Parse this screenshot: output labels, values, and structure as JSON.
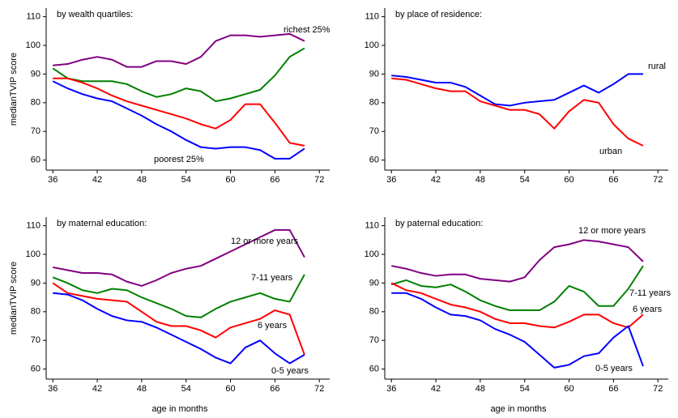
{
  "chart_data": [
    {
      "type": "line",
      "title": "by wealth quartiles:",
      "ylabel": "medianTVIP score",
      "x": [
        36,
        38,
        40,
        42,
        44,
        46,
        48,
        50,
        52,
        54,
        56,
        58,
        60,
        62,
        64,
        66,
        68,
        70
      ],
      "xlim": [
        35.1,
        73.4
      ],
      "ylim": [
        56.5,
        113
      ],
      "xticks": [
        36,
        42,
        48,
        54,
        60,
        66,
        72
      ],
      "yticks": [
        60,
        70,
        80,
        90,
        100,
        110
      ],
      "series": [
        {
          "name": "richest 25%",
          "color": "#800080",
          "values": [
            93,
            93.5,
            95,
            96,
            95,
            92.5,
            92.5,
            94.5,
            94.5,
            93.5,
            96,
            101.5,
            103.5,
            103.5,
            103,
            103.5,
            104,
            101.5
          ]
        },
        {
          "color": "#008000",
          "values": [
            92,
            88.5,
            87.5,
            87.5,
            87.5,
            86.5,
            84,
            82,
            83,
            85,
            84,
            80.5,
            81.5,
            83,
            84.5,
            89.5,
            96,
            99
          ]
        },
        {
          "color": "#ff0000",
          "values": [
            88.5,
            88.5,
            87,
            85,
            82.5,
            80.5,
            79,
            77.5,
            76,
            74.5,
            72.5,
            71,
            74,
            79.5,
            79.5,
            73,
            66,
            65
          ]
        },
        {
          "name": "poorest 25%",
          "color": "#0000ff",
          "values": [
            87.5,
            85,
            83,
            81.5,
            80.5,
            78,
            75.5,
            72.5,
            70,
            67,
            64.5,
            64,
            64.5,
            64.5,
            63.5,
            60.5,
            60.5,
            64
          ]
        }
      ]
    },
    {
      "type": "line",
      "title": "by place of residence:",
      "x": [
        36,
        38,
        40,
        42,
        44,
        46,
        48,
        50,
        52,
        54,
        56,
        58,
        60,
        62,
        64,
        66,
        68,
        70
      ],
      "xlim": [
        35.1,
        73.4
      ],
      "ylim": [
        56.5,
        113
      ],
      "xticks": [
        36,
        42,
        48,
        54,
        60,
        66,
        72
      ],
      "yticks": [
        60,
        70,
        80,
        90,
        100,
        110
      ],
      "series": [
        {
          "name": "rural",
          "color": "#0000ff",
          "values": [
            89.5,
            89,
            88,
            87,
            87,
            85.5,
            82.5,
            79.5,
            79,
            80,
            80.5,
            81,
            83.5,
            86,
            83.5,
            86.5,
            90,
            90
          ]
        },
        {
          "name": "urban",
          "color": "#ff0000",
          "values": [
            88.5,
            88,
            86.5,
            85,
            84,
            84,
            80.5,
            79,
            77.5,
            77.5,
            76,
            71,
            77,
            81,
            80,
            72.5,
            67.5,
            65
          ]
        }
      ]
    },
    {
      "type": "line",
      "title": "by maternal education:",
      "ylabel": "medianTVIP score",
      "xlabel": "age in months",
      "x": [
        36,
        38,
        40,
        42,
        44,
        46,
        48,
        50,
        52,
        54,
        56,
        58,
        60,
        62,
        64,
        66,
        68,
        70
      ],
      "xlim": [
        35.1,
        73.4
      ],
      "ylim": [
        56.5,
        113
      ],
      "xticks": [
        36,
        42,
        48,
        54,
        60,
        66,
        72
      ],
      "yticks": [
        60,
        70,
        80,
        90,
        100,
        110
      ],
      "series": [
        {
          "name": "12 or more years",
          "color": "#800080",
          "values": [
            95.5,
            94.5,
            93.5,
            93.5,
            93,
            90.5,
            89,
            91,
            93.5,
            95,
            96,
            98.5,
            101,
            103.5,
            106,
            108.5,
            108.5,
            99
          ]
        },
        {
          "name": "7-11 years",
          "color": "#008000",
          "values": [
            92,
            90,
            87.5,
            86.5,
            88,
            87.5,
            85,
            83,
            81,
            78.5,
            78,
            81,
            83.5,
            85,
            86.5,
            84.5,
            83.5,
            93
          ]
        },
        {
          "name": "6 years",
          "color": "#ff0000",
          "values": [
            90,
            86.5,
            85.5,
            84.5,
            84,
            83.5,
            80,
            76.5,
            75,
            75,
            73.5,
            71,
            74.5,
            76,
            77.5,
            80.5,
            79,
            65
          ]
        },
        {
          "name": "0-5 years",
          "color": "#0000ff",
          "values": [
            86.5,
            86,
            84,
            81,
            78.5,
            77,
            76.5,
            74.5,
            72,
            69.5,
            67,
            64,
            62,
            67.5,
            70,
            65.5,
            62,
            65
          ]
        }
      ]
    },
    {
      "type": "line",
      "title": "by paternal education:",
      "xlabel": "age in months",
      "x": [
        36,
        38,
        40,
        42,
        44,
        46,
        48,
        50,
        52,
        54,
        56,
        58,
        60,
        62,
        64,
        66,
        68,
        70
      ],
      "xlim": [
        35.1,
        73.4
      ],
      "ylim": [
        56.5,
        113
      ],
      "xticks": [
        36,
        42,
        48,
        54,
        60,
        66,
        72
      ],
      "yticks": [
        60,
        70,
        80,
        90,
        100,
        110
      ],
      "series": [
        {
          "name": "12 or more years",
          "color": "#800080",
          "values": [
            96,
            95,
            93.5,
            92.5,
            93,
            93,
            91.5,
            91,
            90.5,
            92,
            98,
            102.5,
            103.5,
            105,
            104.5,
            103.5,
            102.5,
            97.5
          ]
        },
        {
          "name": "7-11 years",
          "color": "#008000",
          "values": [
            89.5,
            91,
            89,
            88.5,
            89.5,
            87,
            84,
            82,
            80.5,
            80.5,
            80.5,
            83.5,
            89,
            87,
            82,
            82,
            88,
            96
          ]
        },
        {
          "name": "6 years",
          "color": "#ff0000",
          "values": [
            90,
            87.5,
            86.5,
            84.5,
            82.5,
            81.5,
            80,
            77.5,
            76,
            76,
            75,
            74.5,
            76.5,
            79,
            79,
            76,
            74.5,
            79
          ]
        },
        {
          "name": "0-5 years",
          "color": "#0000ff",
          "values": [
            86.5,
            86.5,
            84.5,
            81.5,
            79,
            78.5,
            77,
            74,
            72,
            69.5,
            65,
            60.5,
            61.5,
            64.5,
            65.5,
            71,
            75,
            61
          ]
        }
      ]
    }
  ]
}
